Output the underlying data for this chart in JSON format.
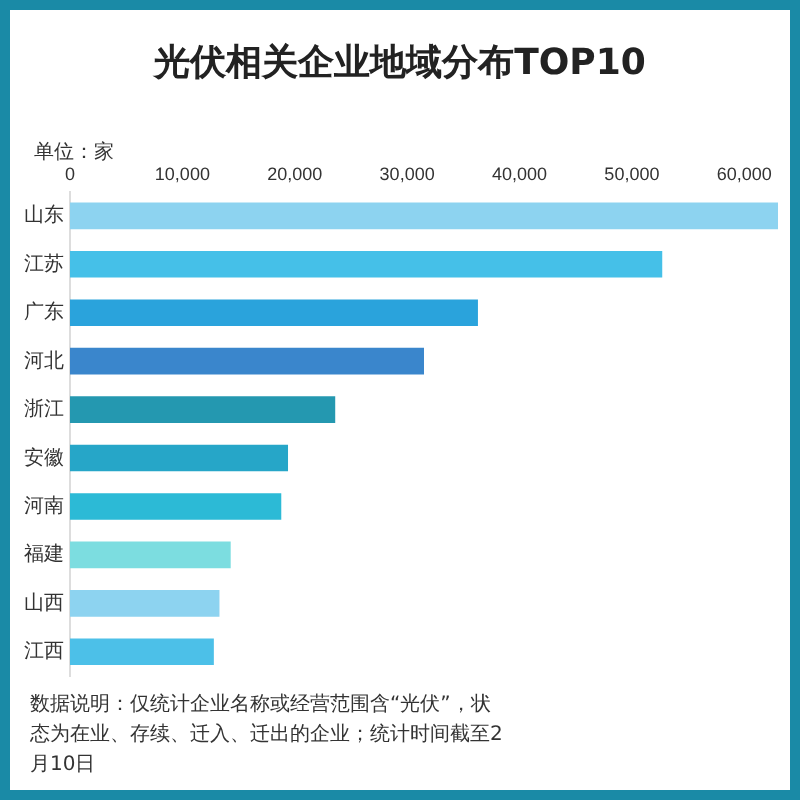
{
  "chart_data": {
    "type": "bar",
    "orientation": "horizontal",
    "title": "光伏相关企业地域分布TOP10",
    "categories": [
      "山东",
      "江苏",
      "广东",
      "河北",
      "浙江",
      "安徽",
      "河南",
      "福建",
      "山西",
      "江西"
    ],
    "values": [
      63000,
      52700,
      36300,
      31500,
      23600,
      19400,
      18800,
      14300,
      13300,
      12800
    ],
    "colors": [
      "#8dd3f0",
      "#45c0e8",
      "#2aa3dc",
      "#3a86cc",
      "#2498b0",
      "#26a6c8",
      "#2cbad6",
      "#7cdde0",
      "#8dd3f0",
      "#4cc0e8"
    ],
    "xlim": [
      0,
      63000
    ],
    "xticks": [
      0,
      {
        "value": 10000,
        "label": "10,000"
      },
      {
        "value": 20000,
        "label": "20,000"
      },
      {
        "value": 30000,
        "label": "30,000"
      },
      {
        "value": 40000,
        "label": "40,000"
      },
      {
        "value": 50000,
        "label": "50,000"
      },
      {
        "value": 60000,
        "label": "60,000"
      }
    ],
    "grid": false,
    "legend": false,
    "annotations": [
      "单位：家",
      "数据说明：仅统计企业名称或经营范围含“光伏”，状态为在业、存续、迁入、迁出的企业；统计时间截至2月10日"
    ]
  }
}
